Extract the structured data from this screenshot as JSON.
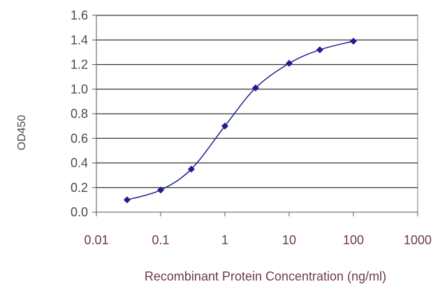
{
  "chart_data": {
    "type": "line",
    "xlabel": "Recombinant Protein Concentration (ng/ml)",
    "ylabel": "OD450",
    "xscale": "log",
    "xlim": [
      0.01,
      1000
    ],
    "ylim": [
      0.0,
      1.6
    ],
    "xticks": [
      "0.01",
      "0.1",
      "1",
      "10",
      "100",
      "1000"
    ],
    "yticks": [
      "0.0",
      "0.2",
      "0.4",
      "0.6",
      "0.8",
      "1.0",
      "1.2",
      "1.4",
      "1.6"
    ],
    "grid": "horizontal",
    "series": [
      {
        "x": [
          0.03,
          0.1,
          0.3,
          1,
          3,
          10,
          30,
          100
        ],
        "y": [
          0.1,
          0.18,
          0.35,
          0.7,
          1.01,
          1.21,
          1.32,
          1.39
        ]
      }
    ],
    "colors": {
      "series": "#1f1f8f",
      "grid": "#333333",
      "axis": "#555555"
    }
  }
}
